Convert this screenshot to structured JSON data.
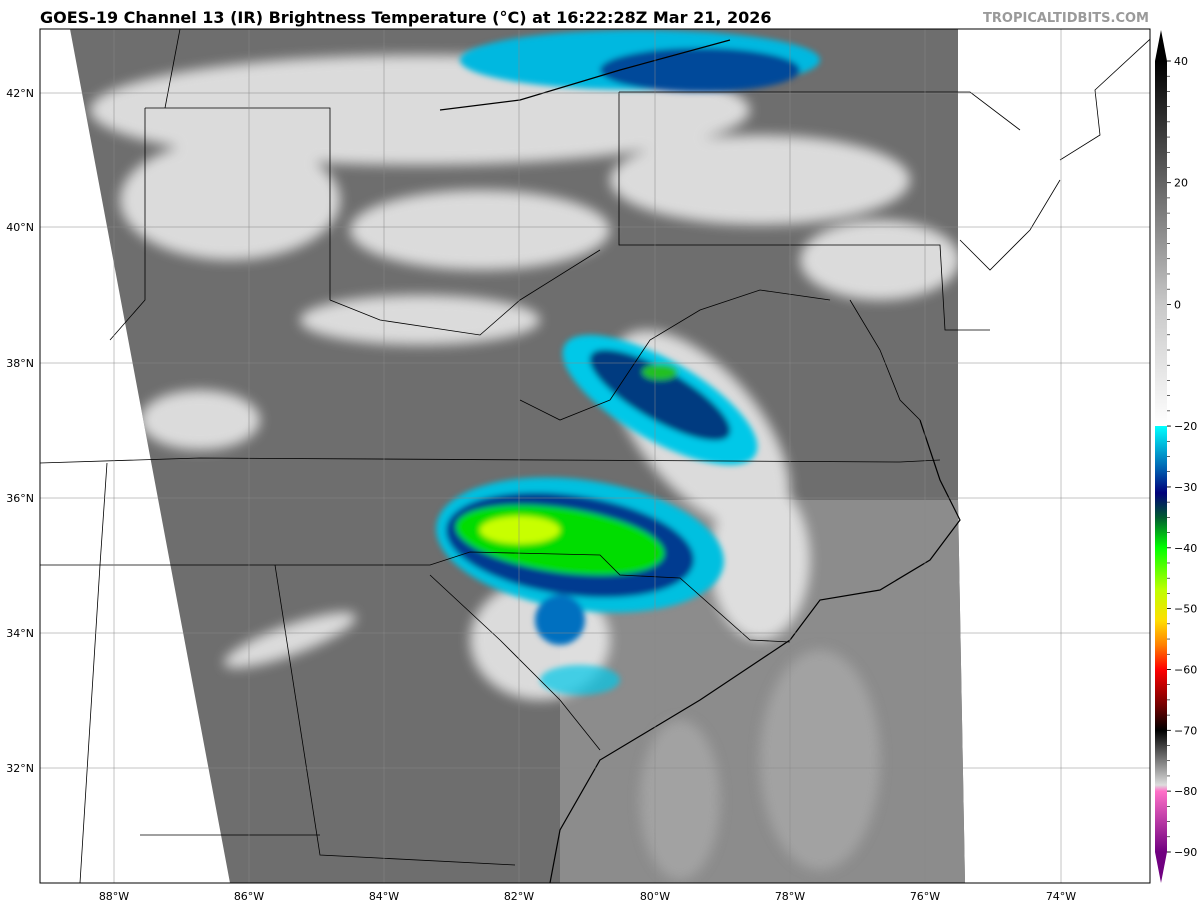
{
  "header": {
    "title": "GOES-19 Channel 13 (IR) Brightness Temperature (°C) at 16:22:28Z Mar 21, 2026",
    "watermark": "TROPICALTIDBITS.COM"
  },
  "map": {
    "lat_labels": [
      "42°N",
      "40°N",
      "38°N",
      "36°N",
      "34°N",
      "32°N"
    ],
    "lon_labels": [
      "88°W",
      "86°W",
      "84°W",
      "82°W",
      "80°W",
      "78°W",
      "76°W",
      "74°W"
    ]
  },
  "colorbar": {
    "ticks": [
      "40",
      "20",
      "0",
      "−20",
      "−30",
      "−40",
      "−50",
      "−60",
      "−70",
      "−80",
      "−90"
    ],
    "tick_values": [
      40,
      20,
      0,
      -20,
      -30,
      -40,
      -50,
      -60,
      -70,
      -80,
      -90
    ],
    "range": [
      -90,
      40
    ],
    "stops": [
      {
        "v": 40,
        "c": "#000000"
      },
      {
        "v": 0,
        "c": "#c8c8c8"
      },
      {
        "v": -20,
        "c": "#ffffff"
      },
      {
        "v": -20,
        "c": "#00ffff"
      },
      {
        "v": -27,
        "c": "#0060b0"
      },
      {
        "v": -31,
        "c": "#00007a"
      },
      {
        "v": -35,
        "c": "#005a30"
      },
      {
        "v": -40,
        "c": "#00ff00"
      },
      {
        "v": -47,
        "c": "#c0ff00"
      },
      {
        "v": -52,
        "c": "#ffdd00"
      },
      {
        "v": -56,
        "c": "#ff8000"
      },
      {
        "v": -60,
        "c": "#ff0000"
      },
      {
        "v": -66,
        "c": "#700000"
      },
      {
        "v": -70,
        "c": "#000000"
      },
      {
        "v": -79,
        "c": "#dddddd"
      },
      {
        "v": -80,
        "c": "#ff70c8"
      },
      {
        "v": -90,
        "c": "#700080"
      }
    ]
  }
}
